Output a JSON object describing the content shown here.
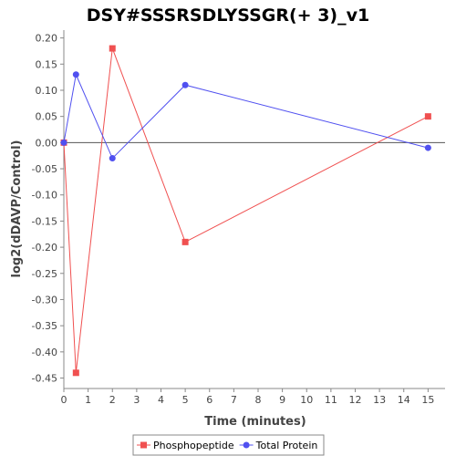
{
  "chart_data": {
    "type": "line",
    "title": "DSY#SSSRSDLYSSGR(+ 3)_v1",
    "xlabel": "Time (minutes)",
    "ylabel": "log2(dDAVP/Control)",
    "xlim": [
      0,
      15.7
    ],
    "ylim": [
      -0.47,
      0.215
    ],
    "xticks": [
      "0",
      "1",
      "2",
      "3",
      "4",
      "5",
      "6",
      "7",
      "8",
      "9",
      "10",
      "11",
      "12",
      "13",
      "14",
      "15"
    ],
    "yticks": [
      "0.20",
      "0.15",
      "0.10",
      "0.05",
      "0.00",
      "-0.05",
      "-0.10",
      "-0.15",
      "-0.20",
      "-0.25",
      "-0.30",
      "-0.35",
      "-0.40",
      "-0.45"
    ],
    "grid": false,
    "zero_line": true,
    "legend_position": "bottom",
    "series": [
      {
        "name": "Phosphopeptide",
        "color": "#f05050",
        "marker": "square",
        "x": [
          0,
          0.5,
          2,
          5,
          15
        ],
        "y": [
          0.0,
          -0.44,
          0.18,
          -0.19,
          0.05
        ]
      },
      {
        "name": "Total Protein",
        "color": "#5050f0",
        "marker": "circle",
        "x": [
          0,
          0.5,
          2,
          5,
          15
        ],
        "y": [
          0.0,
          0.13,
          -0.03,
          0.11,
          -0.01
        ]
      }
    ]
  }
}
